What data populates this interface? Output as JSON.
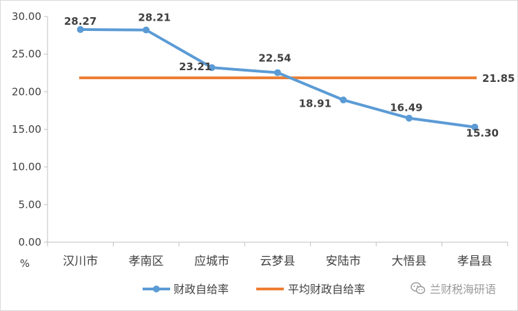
{
  "chart_data": {
    "type": "line",
    "categories": [
      "汉川市",
      "孝南区",
      "应城市",
      "云梦县",
      "安陆市",
      "大悟县",
      "孝昌县"
    ],
    "series": [
      {
        "name": "财政自给率",
        "values": [
          28.27,
          28.21,
          23.21,
          22.54,
          18.91,
          16.49,
          15.3
        ],
        "labels": [
          "28.27",
          "28.21",
          "23.21",
          "22.54",
          "18.91",
          "16.49",
          "15.30"
        ],
        "color": "#5b9bd5",
        "marker": "circle"
      },
      {
        "name": "平均财政自给率",
        "values": [
          21.85,
          21.85,
          21.85,
          21.85,
          21.85,
          21.85,
          21.85
        ],
        "end_label": "21.85",
        "color": "#ed7d31",
        "marker": "none"
      }
    ],
    "ylabel": "%",
    "ylim": [
      0,
      30
    ],
    "yticks": [
      "0.00",
      "5.00",
      "10.00",
      "15.00",
      "20.00",
      "25.00",
      "30.00"
    ],
    "grid": false,
    "legend": "bottom"
  },
  "watermark": {
    "icon": "wechat-icon",
    "text": "兰财税海研语"
  }
}
